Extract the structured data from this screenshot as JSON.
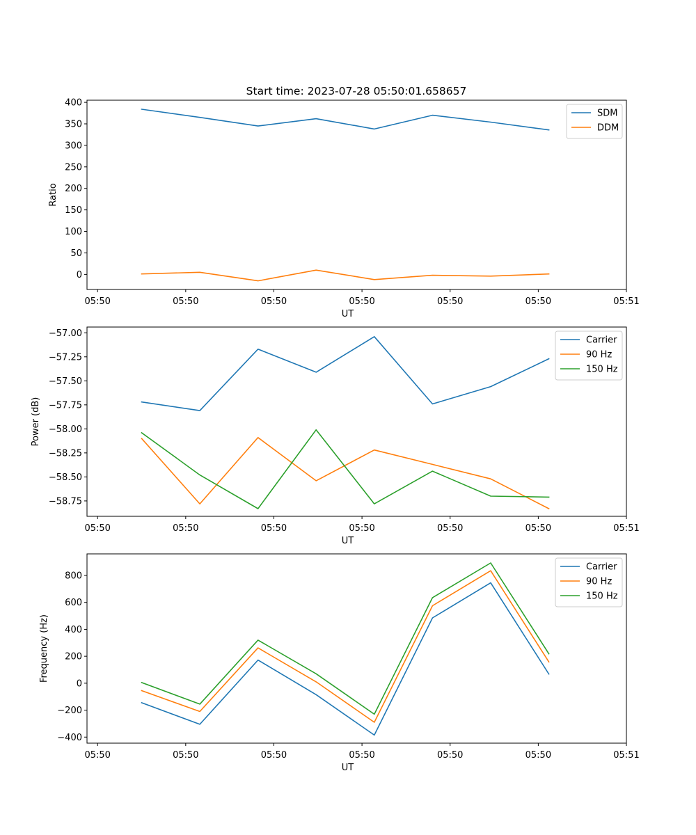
{
  "figure_title": "Start time: 2023-07-28 05:50:01.658657",
  "chart_data": [
    {
      "type": "line",
      "xlabel": "UT",
      "ylabel": "Ratio",
      "x_tick_labels": [
        "05:50",
        "05:50",
        "05:50",
        "05:50",
        "05:50",
        "05:50",
        "05:51"
      ],
      "x_tick_values": [
        0,
        1,
        2,
        3,
        4,
        5,
        6
      ],
      "xlim": [
        -0.12,
        6.0
      ],
      "ylim": [
        -35,
        405
      ],
      "y_ticks": [
        0,
        50,
        100,
        150,
        200,
        250,
        300,
        350,
        400
      ],
      "y_tick_labels": [
        "0",
        "50",
        "100",
        "150",
        "200",
        "250",
        "300",
        "350",
        "400"
      ],
      "legend_position": "top-right",
      "x": [
        0.5,
        1.16,
        1.82,
        2.48,
        3.14,
        3.8,
        4.46,
        5.12
      ],
      "series": [
        {
          "name": "SDM",
          "color": "#1f77b4",
          "values": [
            384,
            365,
            345,
            362,
            338,
            370,
            354,
            336
          ]
        },
        {
          "name": "DDM",
          "color": "#ff7f0e",
          "values": [
            1,
            5,
            -15,
            10,
            -12,
            -2,
            -4,
            1
          ]
        }
      ]
    },
    {
      "type": "line",
      "xlabel": "UT",
      "ylabel": "Power (dB)",
      "x_tick_labels": [
        "05:50",
        "05:50",
        "05:50",
        "05:50",
        "05:50",
        "05:50",
        "05:51"
      ],
      "x_tick_values": [
        0,
        1,
        2,
        3,
        4,
        5,
        6
      ],
      "xlim": [
        -0.12,
        6.0
      ],
      "ylim": [
        -58.91,
        -56.94
      ],
      "y_ticks": [
        -58.75,
        -58.5,
        -58.25,
        -58.0,
        -57.75,
        -57.5,
        -57.25,
        -57.0
      ],
      "y_tick_labels": [
        "−58.75",
        "−58.50",
        "−58.25",
        "−58.00",
        "−57.75",
        "−57.50",
        "−57.25",
        "−57.00"
      ],
      "legend_position": "top-right",
      "x": [
        0.5,
        1.16,
        1.82,
        2.48,
        3.14,
        3.8,
        4.46,
        5.12
      ],
      "series": [
        {
          "name": "Carrier",
          "color": "#1f77b4",
          "values": [
            -57.72,
            -57.81,
            -57.17,
            -57.41,
            -57.04,
            -57.74,
            -57.56,
            -57.27
          ]
        },
        {
          "name": "90 Hz",
          "color": "#ff7f0e",
          "values": [
            -58.1,
            -58.78,
            -58.09,
            -58.54,
            -58.22,
            -58.37,
            -58.52,
            -58.83
          ]
        },
        {
          "name": "150 Hz",
          "color": "#2ca02c",
          "values": [
            -58.04,
            -58.48,
            -58.83,
            -58.01,
            -58.78,
            -58.44,
            -58.7,
            -58.71
          ]
        }
      ]
    },
    {
      "type": "line",
      "xlabel": "UT",
      "ylabel": "Frequency (Hz)",
      "x_tick_labels": [
        "05:50",
        "05:50",
        "05:50",
        "05:50",
        "05:50",
        "05:50",
        "05:51"
      ],
      "x_tick_values": [
        0,
        1,
        2,
        3,
        4,
        5,
        6
      ],
      "xlim": [
        -0.12,
        6.0
      ],
      "ylim": [
        -445,
        960
      ],
      "y_ticks": [
        -400,
        -200,
        0,
        200,
        400,
        600,
        800
      ],
      "y_tick_labels": [
        "−400",
        "−200",
        "0",
        "200",
        "400",
        "600",
        "800"
      ],
      "legend_position": "top-right",
      "x": [
        0.5,
        1.16,
        1.82,
        2.48,
        3.14,
        3.8,
        4.46,
        5.12
      ],
      "series": [
        {
          "name": "Carrier",
          "color": "#1f77b4",
          "values": [
            -145,
            -305,
            172,
            -85,
            -385,
            485,
            745,
            68
          ]
        },
        {
          "name": "90 Hz",
          "color": "#ff7f0e",
          "values": [
            -55,
            -210,
            262,
            10,
            -290,
            575,
            835,
            158
          ]
        },
        {
          "name": "150 Hz",
          "color": "#2ca02c",
          "values": [
            5,
            -155,
            320,
            70,
            -230,
            635,
            893,
            218
          ]
        }
      ]
    }
  ]
}
